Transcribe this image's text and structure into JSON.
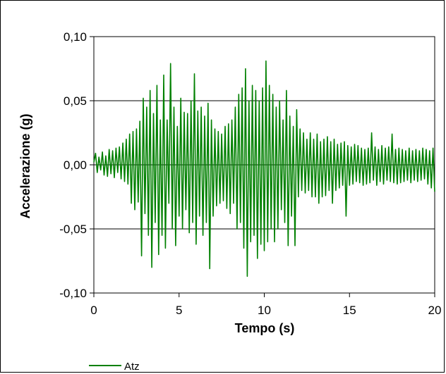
{
  "chart_data": {
    "type": "line",
    "title": "",
    "xlabel": "Tempo (s)",
    "ylabel": "Accelerazione (g)",
    "xlim": [
      0,
      20
    ],
    "ylim": [
      -0.1,
      0.1
    ],
    "x_ticks": [
      0,
      5,
      10,
      15,
      20
    ],
    "x_tick_labels": [
      "0",
      "5",
      "10",
      "15",
      "20"
    ],
    "y_ticks": [
      0.1,
      0.05,
      0.0,
      -0.05,
      -0.1
    ],
    "y_tick_labels": [
      "0,10",
      "0,05",
      "0,00",
      "-0,05",
      "-0,10"
    ],
    "grid": "horizontal",
    "legend": "bottom-left",
    "series": [
      {
        "name": "Atz",
        "color": "#008000",
        "points": [
          [
            0.0,
            0.002
          ],
          [
            0.1,
            0.009
          ],
          [
            0.2,
            -0.006
          ],
          [
            0.3,
            0.006
          ],
          [
            0.4,
            -0.004
          ],
          [
            0.5,
            0.01
          ],
          [
            0.6,
            -0.008
          ],
          [
            0.7,
            0.007
          ],
          [
            0.8,
            -0.009
          ],
          [
            0.9,
            0.012
          ],
          [
            1.0,
            -0.007
          ],
          [
            1.1,
            0.011
          ],
          [
            1.2,
            -0.01
          ],
          [
            1.3,
            0.013
          ],
          [
            1.4,
            -0.006
          ],
          [
            1.5,
            0.014
          ],
          [
            1.6,
            -0.011
          ],
          [
            1.7,
            0.017
          ],
          [
            1.8,
            -0.013
          ],
          [
            1.9,
            0.02
          ],
          [
            2.0,
            -0.015
          ],
          [
            2.1,
            0.024
          ],
          [
            2.2,
            -0.03
          ],
          [
            2.3,
            0.026
          ],
          [
            2.4,
            -0.035
          ],
          [
            2.5,
            0.028
          ],
          [
            2.6,
            -0.029
          ],
          [
            2.7,
            0.034
          ],
          [
            2.8,
            -0.071
          ],
          [
            2.9,
            0.052
          ],
          [
            3.0,
            -0.038
          ],
          [
            3.1,
            0.045
          ],
          [
            3.2,
            -0.055
          ],
          [
            3.3,
            0.058
          ],
          [
            3.4,
            -0.08
          ],
          [
            3.5,
            0.04
          ],
          [
            3.6,
            -0.045
          ],
          [
            3.7,
            0.062
          ],
          [
            3.8,
            -0.07
          ],
          [
            3.9,
            0.035
          ],
          [
            4.0,
            -0.055
          ],
          [
            4.1,
            0.07
          ],
          [
            4.2,
            -0.065
          ],
          [
            4.3,
            0.035
          ],
          [
            4.4,
            -0.03
          ],
          [
            4.5,
            0.079
          ],
          [
            4.6,
            -0.05
          ],
          [
            4.7,
            0.045
          ],
          [
            4.8,
            -0.063
          ],
          [
            4.9,
            0.03
          ],
          [
            5.0,
            -0.04
          ],
          [
            5.1,
            0.052
          ],
          [
            5.2,
            -0.05
          ],
          [
            5.3,
            0.041
          ],
          [
            5.4,
            -0.035
          ],
          [
            5.5,
            0.04
          ],
          [
            5.6,
            -0.053
          ],
          [
            5.7,
            0.05
          ],
          [
            5.8,
            -0.045
          ],
          [
            5.9,
            0.071
          ],
          [
            6.0,
            -0.062
          ],
          [
            6.1,
            0.042
          ],
          [
            6.2,
            -0.04
          ],
          [
            6.3,
            0.045
          ],
          [
            6.4,
            -0.055
          ],
          [
            6.5,
            0.038
          ],
          [
            6.6,
            -0.045
          ],
          [
            6.7,
            0.048
          ],
          [
            6.8,
            -0.081
          ],
          [
            6.9,
            0.035
          ],
          [
            7.0,
            -0.04
          ],
          [
            7.1,
            0.028
          ],
          [
            7.2,
            -0.032
          ],
          [
            7.3,
            0.026
          ],
          [
            7.4,
            -0.03
          ],
          [
            7.5,
            0.024
          ],
          [
            7.6,
            -0.028
          ],
          [
            7.7,
            0.03
          ],
          [
            7.8,
            -0.034
          ],
          [
            7.9,
            0.032
          ],
          [
            8.0,
            -0.038
          ],
          [
            8.1,
            0.035
          ],
          [
            8.2,
            -0.03
          ],
          [
            8.3,
            0.045
          ],
          [
            8.4,
            -0.05
          ],
          [
            8.5,
            0.055
          ],
          [
            8.6,
            -0.045
          ],
          [
            8.7,
            0.06
          ],
          [
            8.8,
            -0.065
          ],
          [
            8.9,
            0.075
          ],
          [
            9.0,
            -0.087
          ],
          [
            9.1,
            0.05
          ],
          [
            9.2,
            -0.06
          ],
          [
            9.3,
            0.062
          ],
          [
            9.4,
            -0.055
          ],
          [
            9.5,
            0.058
          ],
          [
            9.6,
            -0.073
          ],
          [
            9.7,
            0.05
          ],
          [
            9.8,
            -0.062
          ],
          [
            9.9,
            0.06
          ],
          [
            10.0,
            -0.067
          ],
          [
            10.1,
            0.081
          ],
          [
            10.2,
            -0.06
          ],
          [
            10.3,
            0.062
          ],
          [
            10.4,
            -0.05
          ],
          [
            10.5,
            0.055
          ],
          [
            10.6,
            -0.06
          ],
          [
            10.7,
            0.045
          ],
          [
            10.8,
            -0.05
          ],
          [
            10.9,
            0.05
          ],
          [
            11.0,
            -0.035
          ],
          [
            11.1,
            0.035
          ],
          [
            11.2,
            -0.045
          ],
          [
            11.3,
            0.058
          ],
          [
            11.4,
            -0.063
          ],
          [
            11.5,
            0.038
          ],
          [
            11.6,
            -0.04
          ],
          [
            11.7,
            0.03
          ],
          [
            11.8,
            -0.063
          ],
          [
            11.9,
            0.043
          ],
          [
            12.0,
            -0.025
          ],
          [
            12.1,
            0.028
          ],
          [
            12.2,
            -0.02
          ],
          [
            12.3,
            0.025
          ],
          [
            12.4,
            -0.022
          ],
          [
            12.5,
            0.02
          ],
          [
            12.6,
            -0.02
          ],
          [
            12.7,
            0.025
          ],
          [
            12.8,
            -0.025
          ],
          [
            12.9,
            0.02
          ],
          [
            13.0,
            -0.025
          ],
          [
            13.1,
            0.024
          ],
          [
            13.2,
            -0.03
          ],
          [
            13.3,
            0.018
          ],
          [
            13.4,
            -0.025
          ],
          [
            13.5,
            0.02
          ],
          [
            13.6,
            -0.024
          ],
          [
            13.7,
            0.022
          ],
          [
            13.8,
            -0.02
          ],
          [
            13.9,
            0.018
          ],
          [
            14.0,
            -0.03
          ],
          [
            14.1,
            0.02
          ],
          [
            14.2,
            -0.02
          ],
          [
            14.3,
            0.016
          ],
          [
            14.4,
            -0.018
          ],
          [
            14.5,
            0.017
          ],
          [
            14.6,
            -0.016
          ],
          [
            14.7,
            0.018
          ],
          [
            14.8,
            -0.04
          ],
          [
            14.9,
            0.015
          ],
          [
            15.0,
            -0.016
          ],
          [
            15.1,
            0.014
          ],
          [
            15.2,
            -0.015
          ],
          [
            15.3,
            0.016
          ],
          [
            15.4,
            -0.013
          ],
          [
            15.5,
            0.015
          ],
          [
            15.6,
            -0.014
          ],
          [
            15.7,
            0.013
          ],
          [
            15.8,
            -0.016
          ],
          [
            15.9,
            0.012
          ],
          [
            16.0,
            -0.015
          ],
          [
            16.1,
            0.013
          ],
          [
            16.2,
            -0.014
          ],
          [
            16.3,
            0.025
          ],
          [
            16.4,
            -0.012
          ],
          [
            16.5,
            0.014
          ],
          [
            16.6,
            -0.016
          ],
          [
            16.7,
            0.012
          ],
          [
            16.8,
            -0.013
          ],
          [
            16.9,
            0.015
          ],
          [
            17.0,
            -0.015
          ],
          [
            17.1,
            0.013
          ],
          [
            17.2,
            -0.012
          ],
          [
            17.3,
            0.014
          ],
          [
            17.4,
            -0.013
          ],
          [
            17.5,
            0.024
          ],
          [
            17.6,
            -0.014
          ],
          [
            17.7,
            0.012
          ],
          [
            17.8,
            -0.015
          ],
          [
            17.9,
            0.013
          ],
          [
            18.0,
            -0.014
          ],
          [
            18.1,
            0.012
          ],
          [
            18.2,
            -0.013
          ],
          [
            18.3,
            0.011
          ],
          [
            18.4,
            -0.012
          ],
          [
            18.5,
            0.013
          ],
          [
            18.6,
            -0.014
          ],
          [
            18.7,
            0.011
          ],
          [
            18.8,
            -0.012
          ],
          [
            18.9,
            0.012
          ],
          [
            19.0,
            -0.013
          ],
          [
            19.1,
            0.011
          ],
          [
            19.2,
            -0.012
          ],
          [
            19.3,
            0.013
          ],
          [
            19.4,
            -0.011
          ],
          [
            19.5,
            0.012
          ],
          [
            19.6,
            -0.015
          ],
          [
            19.7,
            0.011
          ],
          [
            19.8,
            -0.018
          ],
          [
            19.9,
            0.013
          ],
          [
            20.0,
            -0.021
          ]
        ]
      }
    ]
  }
}
